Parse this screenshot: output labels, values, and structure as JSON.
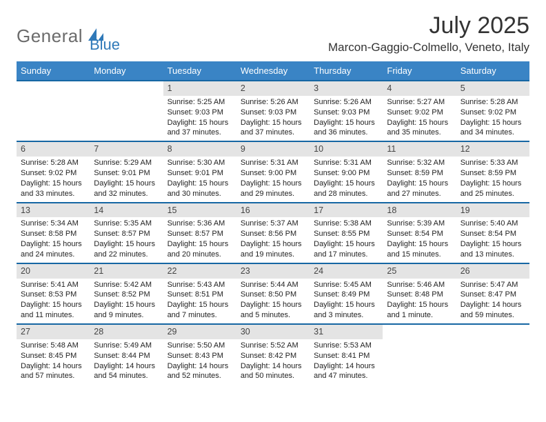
{
  "logo": {
    "part1": "General",
    "part2": "Blue"
  },
  "header": {
    "month_title": "July 2025",
    "location": "Marcon-Gaggio-Colmello, Veneto, Italy"
  },
  "colors": {
    "header_bg": "#3a84c5",
    "row_sep": "#1566a3",
    "daynum_bg": "#e4e4e4",
    "logo_gray": "#6b6b6b",
    "logo_blue": "#2f79b8"
  },
  "daynames": [
    "Sunday",
    "Monday",
    "Tuesday",
    "Wednesday",
    "Thursday",
    "Friday",
    "Saturday"
  ],
  "weeks": [
    [
      null,
      null,
      {
        "n": "1",
        "sr": "Sunrise: 5:25 AM",
        "ss": "Sunset: 9:03 PM",
        "d1": "Daylight: 15 hours",
        "d2": "and 37 minutes."
      },
      {
        "n": "2",
        "sr": "Sunrise: 5:26 AM",
        "ss": "Sunset: 9:03 PM",
        "d1": "Daylight: 15 hours",
        "d2": "and 37 minutes."
      },
      {
        "n": "3",
        "sr": "Sunrise: 5:26 AM",
        "ss": "Sunset: 9:03 PM",
        "d1": "Daylight: 15 hours",
        "d2": "and 36 minutes."
      },
      {
        "n": "4",
        "sr": "Sunrise: 5:27 AM",
        "ss": "Sunset: 9:02 PM",
        "d1": "Daylight: 15 hours",
        "d2": "and 35 minutes."
      },
      {
        "n": "5",
        "sr": "Sunrise: 5:28 AM",
        "ss": "Sunset: 9:02 PM",
        "d1": "Daylight: 15 hours",
        "d2": "and 34 minutes."
      }
    ],
    [
      {
        "n": "6",
        "sr": "Sunrise: 5:28 AM",
        "ss": "Sunset: 9:02 PM",
        "d1": "Daylight: 15 hours",
        "d2": "and 33 minutes."
      },
      {
        "n": "7",
        "sr": "Sunrise: 5:29 AM",
        "ss": "Sunset: 9:01 PM",
        "d1": "Daylight: 15 hours",
        "d2": "and 32 minutes."
      },
      {
        "n": "8",
        "sr": "Sunrise: 5:30 AM",
        "ss": "Sunset: 9:01 PM",
        "d1": "Daylight: 15 hours",
        "d2": "and 30 minutes."
      },
      {
        "n": "9",
        "sr": "Sunrise: 5:31 AM",
        "ss": "Sunset: 9:00 PM",
        "d1": "Daylight: 15 hours",
        "d2": "and 29 minutes."
      },
      {
        "n": "10",
        "sr": "Sunrise: 5:31 AM",
        "ss": "Sunset: 9:00 PM",
        "d1": "Daylight: 15 hours",
        "d2": "and 28 minutes."
      },
      {
        "n": "11",
        "sr": "Sunrise: 5:32 AM",
        "ss": "Sunset: 8:59 PM",
        "d1": "Daylight: 15 hours",
        "d2": "and 27 minutes."
      },
      {
        "n": "12",
        "sr": "Sunrise: 5:33 AM",
        "ss": "Sunset: 8:59 PM",
        "d1": "Daylight: 15 hours",
        "d2": "and 25 minutes."
      }
    ],
    [
      {
        "n": "13",
        "sr": "Sunrise: 5:34 AM",
        "ss": "Sunset: 8:58 PM",
        "d1": "Daylight: 15 hours",
        "d2": "and 24 minutes."
      },
      {
        "n": "14",
        "sr": "Sunrise: 5:35 AM",
        "ss": "Sunset: 8:57 PM",
        "d1": "Daylight: 15 hours",
        "d2": "and 22 minutes."
      },
      {
        "n": "15",
        "sr": "Sunrise: 5:36 AM",
        "ss": "Sunset: 8:57 PM",
        "d1": "Daylight: 15 hours",
        "d2": "and 20 minutes."
      },
      {
        "n": "16",
        "sr": "Sunrise: 5:37 AM",
        "ss": "Sunset: 8:56 PM",
        "d1": "Daylight: 15 hours",
        "d2": "and 19 minutes."
      },
      {
        "n": "17",
        "sr": "Sunrise: 5:38 AM",
        "ss": "Sunset: 8:55 PM",
        "d1": "Daylight: 15 hours",
        "d2": "and 17 minutes."
      },
      {
        "n": "18",
        "sr": "Sunrise: 5:39 AM",
        "ss": "Sunset: 8:54 PM",
        "d1": "Daylight: 15 hours",
        "d2": "and 15 minutes."
      },
      {
        "n": "19",
        "sr": "Sunrise: 5:40 AM",
        "ss": "Sunset: 8:54 PM",
        "d1": "Daylight: 15 hours",
        "d2": "and 13 minutes."
      }
    ],
    [
      {
        "n": "20",
        "sr": "Sunrise: 5:41 AM",
        "ss": "Sunset: 8:53 PM",
        "d1": "Daylight: 15 hours",
        "d2": "and 11 minutes."
      },
      {
        "n": "21",
        "sr": "Sunrise: 5:42 AM",
        "ss": "Sunset: 8:52 PM",
        "d1": "Daylight: 15 hours",
        "d2": "and 9 minutes."
      },
      {
        "n": "22",
        "sr": "Sunrise: 5:43 AM",
        "ss": "Sunset: 8:51 PM",
        "d1": "Daylight: 15 hours",
        "d2": "and 7 minutes."
      },
      {
        "n": "23",
        "sr": "Sunrise: 5:44 AM",
        "ss": "Sunset: 8:50 PM",
        "d1": "Daylight: 15 hours",
        "d2": "and 5 minutes."
      },
      {
        "n": "24",
        "sr": "Sunrise: 5:45 AM",
        "ss": "Sunset: 8:49 PM",
        "d1": "Daylight: 15 hours",
        "d2": "and 3 minutes."
      },
      {
        "n": "25",
        "sr": "Sunrise: 5:46 AM",
        "ss": "Sunset: 8:48 PM",
        "d1": "Daylight: 15 hours",
        "d2": "and 1 minute."
      },
      {
        "n": "26",
        "sr": "Sunrise: 5:47 AM",
        "ss": "Sunset: 8:47 PM",
        "d1": "Daylight: 14 hours",
        "d2": "and 59 minutes."
      }
    ],
    [
      {
        "n": "27",
        "sr": "Sunrise: 5:48 AM",
        "ss": "Sunset: 8:45 PM",
        "d1": "Daylight: 14 hours",
        "d2": "and 57 minutes."
      },
      {
        "n": "28",
        "sr": "Sunrise: 5:49 AM",
        "ss": "Sunset: 8:44 PM",
        "d1": "Daylight: 14 hours",
        "d2": "and 54 minutes."
      },
      {
        "n": "29",
        "sr": "Sunrise: 5:50 AM",
        "ss": "Sunset: 8:43 PM",
        "d1": "Daylight: 14 hours",
        "d2": "and 52 minutes."
      },
      {
        "n": "30",
        "sr": "Sunrise: 5:52 AM",
        "ss": "Sunset: 8:42 PM",
        "d1": "Daylight: 14 hours",
        "d2": "and 50 minutes."
      },
      {
        "n": "31",
        "sr": "Sunrise: 5:53 AM",
        "ss": "Sunset: 8:41 PM",
        "d1": "Daylight: 14 hours",
        "d2": "and 47 minutes."
      },
      null,
      null
    ]
  ]
}
